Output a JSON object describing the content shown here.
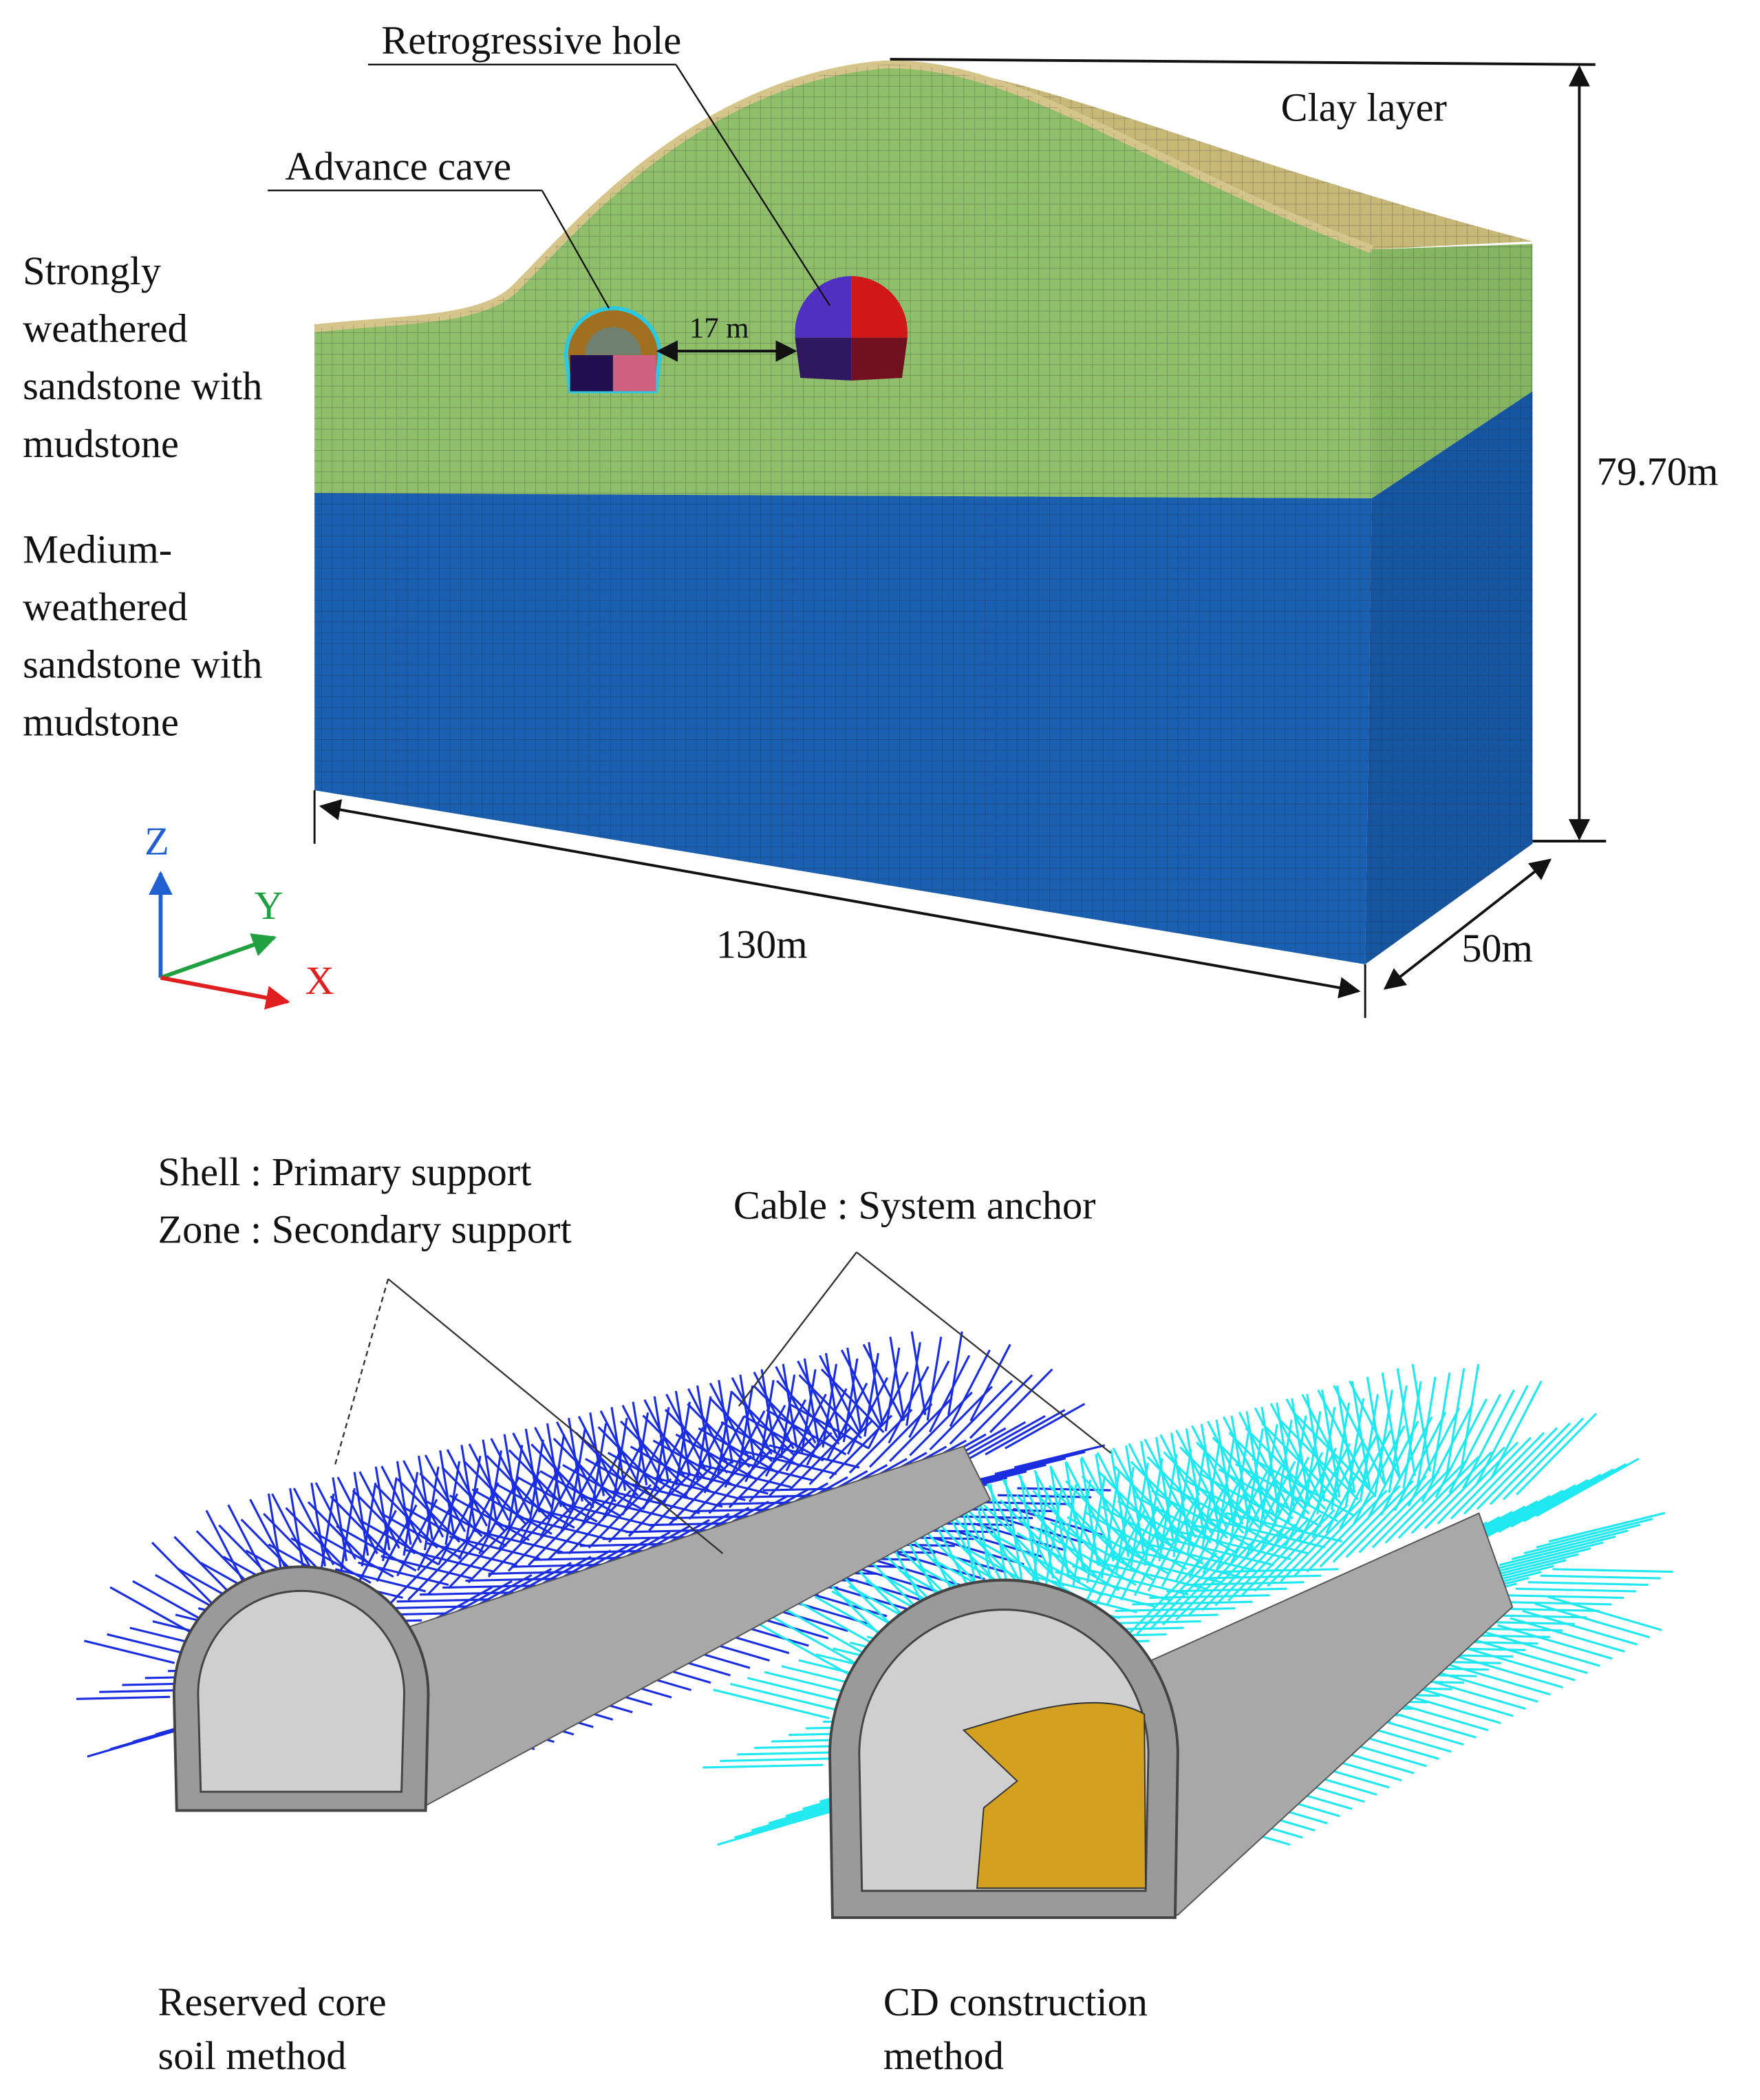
{
  "top_model": {
    "callouts": [
      "Retrogressive hole",
      "Advance cave",
      "Clay layer"
    ],
    "spacing": "17 m",
    "layer_labels": [
      {
        "lines": [
          "Strongly",
          "weathered",
          "sandstone with",
          "mudstone"
        ]
      },
      {
        "lines": [
          "Medium-",
          "weathered",
          "sandstone with",
          "mudstone"
        ]
      }
    ],
    "dimensions": {
      "height": "79.70m",
      "length": "130m",
      "width": "50m"
    },
    "axes": [
      "Z",
      "Y",
      "X"
    ]
  },
  "bottom_model": {
    "support_labels": [
      "Shell : Primary support",
      "Zone : Secondary support"
    ],
    "anchor_label": "Cable : System anchor",
    "methods": [
      {
        "lines": [
          "Reserved core",
          "soil method"
        ]
      },
      {
        "lines": [
          "CD construction",
          "method"
        ]
      }
    ]
  }
}
